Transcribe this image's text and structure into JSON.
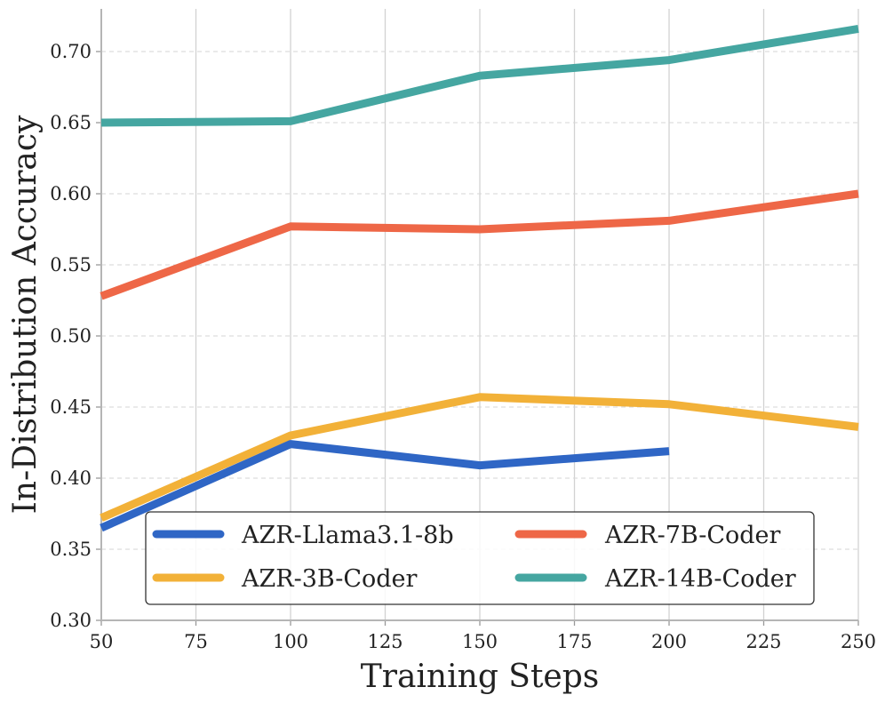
{
  "chart_data": {
    "type": "line",
    "title": "",
    "xlabel": "Training Steps",
    "ylabel": "In-Distribution Accuracy",
    "xlim": [
      50,
      250
    ],
    "ylim": [
      0.3,
      0.72
    ],
    "xticks": [
      50,
      75,
      100,
      125,
      150,
      175,
      200,
      225,
      250
    ],
    "yticks": [
      0.3,
      0.35,
      0.4,
      0.45,
      0.5,
      0.55,
      0.6,
      0.65,
      0.7
    ],
    "xtick_labels": [
      "50",
      "75",
      "100",
      "125",
      "150",
      "175",
      "200",
      "225",
      "250"
    ],
    "ytick_labels": [
      "0.30",
      "0.35",
      "0.40",
      "0.45",
      "0.50",
      "0.55",
      "0.60",
      "0.65",
      "0.70"
    ],
    "grid": true,
    "legend_position": "lower-center",
    "series": [
      {
        "name": "AZR-Llama3.1-8b",
        "color": "#2f66c5",
        "x": [
          50,
          100,
          150,
          200
        ],
        "values": [
          0.365,
          0.424,
          0.409,
          0.419
        ]
      },
      {
        "name": "AZR-7B-Coder",
        "color": "#ee6747",
        "x": [
          50,
          100,
          150,
          200,
          250
        ],
        "values": [
          0.528,
          0.577,
          0.575,
          0.581,
          0.6
        ]
      },
      {
        "name": "AZR-3B-Coder",
        "color": "#f2b138",
        "x": [
          50,
          100,
          150,
          200,
          250
        ],
        "values": [
          0.372,
          0.43,
          0.457,
          0.452,
          0.436
        ]
      },
      {
        "name": "AZR-14B-Coder",
        "color": "#45a6a1",
        "x": [
          50,
          100,
          150,
          200,
          250
        ],
        "values": [
          0.65,
          0.651,
          0.683,
          0.694,
          0.716
        ]
      }
    ]
  }
}
